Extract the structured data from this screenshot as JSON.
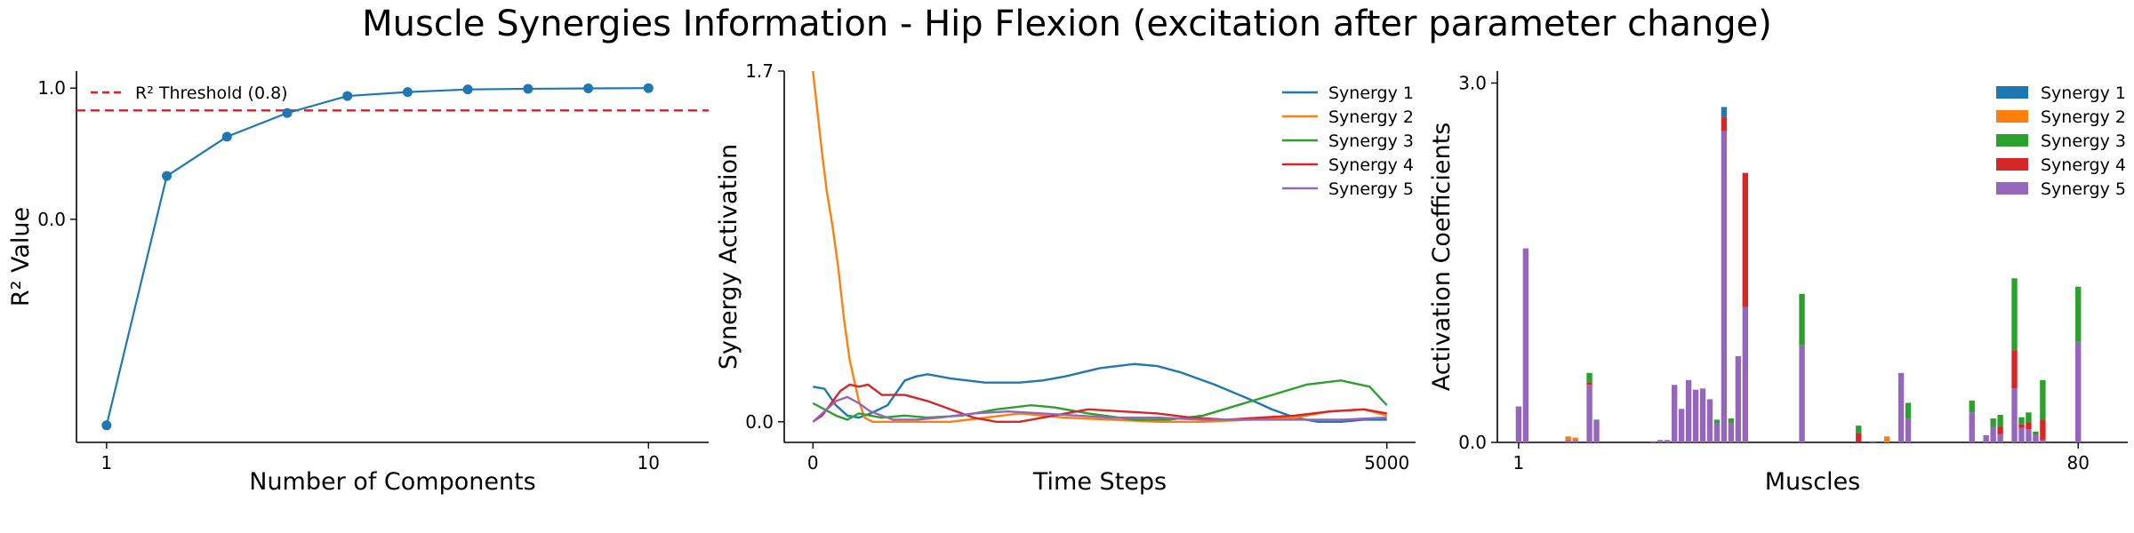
{
  "figure": {
    "title": "Muscle Synergies Information - Hip Flexion (excitation after parameter change)"
  },
  "colors": {
    "c1": "#1f77b4",
    "c2": "#ff7f0e",
    "c3": "#2ca02c",
    "c4": "#d62728",
    "c5": "#9467bd",
    "threshold": "#e41a1c",
    "axis": "#000000"
  },
  "chart_data": [
    {
      "type": "line",
      "xlabel": "Number of Components",
      "ylabel": "R² Value",
      "x": [
        1,
        2,
        3,
        4,
        5,
        6,
        7,
        8,
        9,
        10
      ],
      "values": [
        -1.57,
        0.33,
        0.63,
        0.81,
        0.94,
        0.97,
        0.99,
        0.995,
        0.998,
        1.0
      ],
      "xticks": [
        "1",
        "10"
      ],
      "xtick_values": [
        1,
        10
      ],
      "yticks": [
        "0.0",
        "1.0"
      ],
      "ytick_values": [
        0,
        1
      ],
      "xlim": [
        0.5,
        11.0
      ],
      "ylim": [
        -1.7,
        1.13
      ],
      "threshold": {
        "value": 0.83,
        "label": "R² Threshold (0.8)"
      },
      "legend": "top-left",
      "grid": false
    },
    {
      "type": "line",
      "xlabel": "Time Steps",
      "ylabel": "Synergy Activation",
      "xticks": [
        "0",
        "5000"
      ],
      "xtick_values": [
        0,
        5000
      ],
      "yticks": [
        "0.0",
        "1.7"
      ],
      "ytick_values": [
        0,
        1.7
      ],
      "xlim": [
        -250,
        5250
      ],
      "ylim": [
        -0.1,
        1.7
      ],
      "legend": "top-right",
      "grid": false,
      "series": [
        {
          "name": "Synergy 1",
          "x": [
            0,
            100,
            200,
            300,
            400,
            500,
            650,
            800,
            900,
            1000,
            1200,
            1500,
            1800,
            2000,
            2200,
            2500,
            2800,
            3000,
            3200,
            3500,
            3800,
            4000,
            4200,
            4400,
            4600,
            4800,
            5000
          ],
          "values": [
            0.17,
            0.16,
            0.08,
            0.03,
            0.02,
            0.04,
            0.08,
            0.2,
            0.22,
            0.23,
            0.21,
            0.19,
            0.19,
            0.2,
            0.22,
            0.26,
            0.28,
            0.27,
            0.24,
            0.18,
            0.11,
            0.06,
            0.02,
            0.0,
            0.0,
            0.01,
            0.01
          ]
        },
        {
          "name": "Synergy 2",
          "x": [
            0,
            40,
            80,
            120,
            170,
            220,
            270,
            320,
            360,
            400,
            450,
            520,
            700,
            1000,
            1200,
            1500,
            1800,
            2200,
            2600,
            3000,
            3400,
            3800,
            4200,
            4500,
            4800,
            5000
          ],
          "values": [
            1.7,
            1.5,
            1.3,
            1.12,
            0.95,
            0.75,
            0.5,
            0.3,
            0.2,
            0.1,
            0.02,
            0.0,
            0.0,
            0.0,
            0.0,
            0.02,
            0.04,
            0.02,
            0.01,
            0.0,
            0.0,
            0.01,
            0.02,
            0.05,
            0.06,
            0.03
          ]
        },
        {
          "name": "Synergy 3",
          "x": [
            0,
            100,
            200,
            300,
            400,
            500,
            600,
            800,
            1000,
            1300,
            1600,
            1900,
            2100,
            2400,
            2800,
            3100,
            3400,
            3700,
            4000,
            4300,
            4600,
            4850,
            5000
          ],
          "values": [
            0.09,
            0.06,
            0.03,
            0.01,
            0.04,
            0.03,
            0.02,
            0.03,
            0.02,
            0.03,
            0.06,
            0.08,
            0.07,
            0.04,
            0.01,
            0.01,
            0.03,
            0.08,
            0.13,
            0.18,
            0.2,
            0.17,
            0.08
          ]
        },
        {
          "name": "Synergy 4",
          "x": [
            0,
            80,
            160,
            240,
            320,
            400,
            480,
            600,
            800,
            1000,
            1200,
            1400,
            1600,
            1800,
            2000,
            2200,
            2400,
            2700,
            3000,
            3300,
            3600,
            3900,
            4200,
            4500,
            4800,
            5000
          ],
          "values": [
            0.0,
            0.03,
            0.09,
            0.15,
            0.18,
            0.17,
            0.18,
            0.13,
            0.13,
            0.1,
            0.06,
            0.02,
            0.0,
            0.0,
            0.02,
            0.04,
            0.06,
            0.05,
            0.04,
            0.02,
            0.01,
            0.02,
            0.03,
            0.05,
            0.06,
            0.04
          ]
        },
        {
          "name": "Synergy 5",
          "x": [
            0,
            100,
            200,
            300,
            400,
            500,
            700,
            900,
            1100,
            1400,
            1700,
            2000,
            2300,
            2600,
            3000,
            3400,
            3800,
            4200,
            4600,
            5000
          ],
          "values": [
            0.0,
            0.05,
            0.1,
            0.12,
            0.09,
            0.05,
            0.01,
            0.01,
            0.02,
            0.04,
            0.05,
            0.04,
            0.03,
            0.02,
            0.02,
            0.01,
            0.01,
            0.01,
            0.01,
            0.02
          ]
        }
      ]
    },
    {
      "type": "bar",
      "stacked": true,
      "xlabel": "Muscles",
      "ylabel": "Activation Coefficients",
      "xticks": [
        "1",
        "80"
      ],
      "xtick_values": [
        1,
        80
      ],
      "yticks": [
        "0.0",
        "3.0"
      ],
      "ytick_values": [
        0,
        3
      ],
      "xlim": [
        -2,
        87
      ],
      "ylim": [
        0,
        3.1
      ],
      "legend": "top-right",
      "grid": false,
      "categories": [
        1,
        2,
        3,
        4,
        5,
        6,
        7,
        8,
        9,
        10,
        11,
        12,
        13,
        14,
        15,
        16,
        17,
        18,
        19,
        20,
        21,
        22,
        23,
        24,
        25,
        26,
        27,
        28,
        29,
        30,
        31,
        32,
        33,
        34,
        35,
        36,
        37,
        38,
        39,
        40,
        41,
        42,
        43,
        44,
        45,
        46,
        47,
        48,
        49,
        50,
        51,
        52,
        53,
        54,
        55,
        56,
        57,
        58,
        59,
        60,
        61,
        62,
        63,
        64,
        65,
        66,
        67,
        68,
        69,
        70,
        71,
        72,
        73,
        74,
        75,
        76,
        77,
        78,
        79,
        80
      ],
      "series": [
        {
          "name": "Synergy 1",
          "values": [
            0,
            0,
            0,
            0,
            0,
            0,
            0,
            0,
            0,
            0,
            0,
            0,
            0,
            0,
            0,
            0,
            0,
            0,
            0,
            0,
            0,
            0,
            0,
            0,
            0,
            0,
            0,
            0,
            0,
            0.08,
            0,
            0,
            0,
            0,
            0,
            0,
            0,
            0,
            0,
            0,
            0,
            0,
            0,
            0,
            0,
            0,
            0,
            0,
            0,
            0,
            0,
            0,
            0,
            0,
            0,
            0,
            0,
            0,
            0,
            0,
            0,
            0,
            0,
            0,
            0,
            0,
            0,
            0,
            0,
            0,
            0,
            0,
            0,
            0,
            0,
            0,
            0,
            0,
            0,
            0
          ]
        },
        {
          "name": "Synergy 2",
          "values": [
            0,
            0,
            0,
            0,
            0,
            0,
            0,
            0.03,
            0.02,
            0,
            0,
            0,
            0,
            0,
            0,
            0,
            0,
            0,
            0,
            0,
            0,
            0,
            0,
            0,
            0,
            0,
            0,
            0,
            0,
            0,
            0,
            0,
            0,
            0,
            0,
            0,
            0,
            0,
            0,
            0,
            0,
            0,
            0,
            0,
            0,
            0,
            0,
            0,
            0,
            0,
            0,
            0,
            0.05,
            0,
            0,
            0,
            0,
            0,
            0,
            0,
            0,
            0,
            0,
            0,
            0,
            0,
            0,
            0,
            0,
            0,
            0,
            0,
            0,
            0,
            0,
            0,
            0,
            0,
            0,
            0
          ]
        },
        {
          "name": "Synergy 3",
          "values": [
            0,
            0,
            0,
            0,
            0,
            0,
            0,
            0,
            0,
            0,
            0.08,
            0.01,
            0,
            0,
            0,
            0,
            0,
            0,
            0,
            0,
            0,
            0,
            0,
            0,
            0,
            0,
            0,
            0,
            0.03,
            0,
            0.04,
            0,
            0,
            0,
            0,
            0,
            0,
            0,
            0,
            0,
            0.43,
            0,
            0,
            0,
            0,
            0,
            0,
            0,
            0.06,
            0,
            0,
            0,
            0,
            0,
            0,
            0.13,
            0,
            0,
            0,
            0,
            0,
            0,
            0,
            0,
            0.1,
            0,
            0,
            0.07,
            0.1,
            0,
            0.6,
            0.06,
            0.08,
            0.03,
            0.33,
            0,
            0,
            0,
            0,
            0.46
          ]
        },
        {
          "name": "Synergy 4",
          "values": [
            0,
            0,
            0,
            0,
            0,
            0,
            0,
            0,
            0,
            0,
            0.02,
            0,
            0,
            0,
            0,
            0,
            0,
            0,
            0,
            0,
            0,
            0,
            0,
            0,
            0,
            0,
            0,
            0,
            0,
            0.12,
            0,
            0,
            1.12,
            0,
            0,
            0,
            0,
            0,
            0,
            0,
            0,
            0,
            0,
            0,
            0,
            0,
            0,
            0,
            0.08,
            0,
            0,
            0,
            0,
            0,
            0,
            0,
            0,
            0,
            0,
            0,
            0,
            0,
            0,
            0,
            0,
            0,
            0,
            0,
            0.06,
            0,
            0.32,
            0.03,
            0.06,
            0,
            0.17,
            0,
            0,
            0,
            0,
            0
          ]
        },
        {
          "name": "Synergy 5",
          "values": [
            0.3,
            1.62,
            0,
            0,
            0,
            0,
            0,
            0.02,
            0.02,
            0,
            0.48,
            0.18,
            0,
            0,
            0,
            0,
            0,
            0,
            0,
            0.01,
            0.02,
            0.02,
            0.48,
            0.28,
            0.52,
            0.44,
            0.45,
            0.36,
            0.16,
            2.6,
            0.16,
            0.72,
            1.13,
            0,
            0,
            0,
            0,
            0,
            0,
            0,
            0.81,
            0,
            0,
            0,
            0,
            0,
            0,
            0,
            0,
            0,
            0.01,
            0,
            0,
            0,
            0.58,
            0.2,
            0,
            0,
            0,
            0,
            0,
            0,
            0,
            0,
            0.25,
            0,
            0.06,
            0.13,
            0.07,
            0,
            0.45,
            0.12,
            0.11,
            0.06,
            0.02,
            0,
            0,
            0,
            0,
            0.84
          ]
        }
      ]
    }
  ]
}
